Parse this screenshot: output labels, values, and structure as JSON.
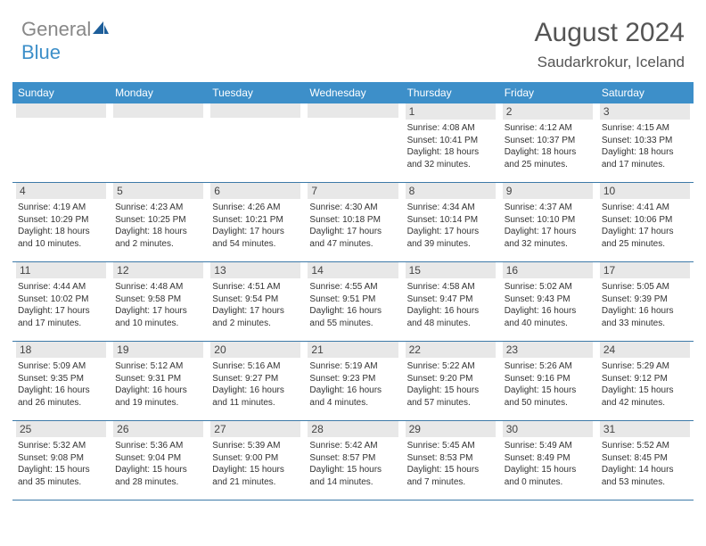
{
  "brand": {
    "part1": "General",
    "part2": "Blue",
    "icon_color": "#1d5e9a"
  },
  "title": "August 2024",
  "location": "Saudarkrokur, Iceland",
  "colors": {
    "header_bg": "#3d8fc9",
    "header_text": "#ffffff",
    "daynum_bg": "#e8e8e8",
    "row_border": "#3d7aa8",
    "body_text": "#333333"
  },
  "fonts": {
    "title_size": 30,
    "location_size": 17,
    "dow_size": 12,
    "daynum_size": 12,
    "body_size": 10
  },
  "dow": [
    "Sunday",
    "Monday",
    "Tuesday",
    "Wednesday",
    "Thursday",
    "Friday",
    "Saturday"
  ],
  "weeks": [
    [
      {
        "n": "",
        "sr": "",
        "ss": "",
        "dl": ""
      },
      {
        "n": "",
        "sr": "",
        "ss": "",
        "dl": ""
      },
      {
        "n": "",
        "sr": "",
        "ss": "",
        "dl": ""
      },
      {
        "n": "",
        "sr": "",
        "ss": "",
        "dl": ""
      },
      {
        "n": "1",
        "sr": "Sunrise: 4:08 AM",
        "ss": "Sunset: 10:41 PM",
        "dl": "Daylight: 18 hours and 32 minutes."
      },
      {
        "n": "2",
        "sr": "Sunrise: 4:12 AM",
        "ss": "Sunset: 10:37 PM",
        "dl": "Daylight: 18 hours and 25 minutes."
      },
      {
        "n": "3",
        "sr": "Sunrise: 4:15 AM",
        "ss": "Sunset: 10:33 PM",
        "dl": "Daylight: 18 hours and 17 minutes."
      }
    ],
    [
      {
        "n": "4",
        "sr": "Sunrise: 4:19 AM",
        "ss": "Sunset: 10:29 PM",
        "dl": "Daylight: 18 hours and 10 minutes."
      },
      {
        "n": "5",
        "sr": "Sunrise: 4:23 AM",
        "ss": "Sunset: 10:25 PM",
        "dl": "Daylight: 18 hours and 2 minutes."
      },
      {
        "n": "6",
        "sr": "Sunrise: 4:26 AM",
        "ss": "Sunset: 10:21 PM",
        "dl": "Daylight: 17 hours and 54 minutes."
      },
      {
        "n": "7",
        "sr": "Sunrise: 4:30 AM",
        "ss": "Sunset: 10:18 PM",
        "dl": "Daylight: 17 hours and 47 minutes."
      },
      {
        "n": "8",
        "sr": "Sunrise: 4:34 AM",
        "ss": "Sunset: 10:14 PM",
        "dl": "Daylight: 17 hours and 39 minutes."
      },
      {
        "n": "9",
        "sr": "Sunrise: 4:37 AM",
        "ss": "Sunset: 10:10 PM",
        "dl": "Daylight: 17 hours and 32 minutes."
      },
      {
        "n": "10",
        "sr": "Sunrise: 4:41 AM",
        "ss": "Sunset: 10:06 PM",
        "dl": "Daylight: 17 hours and 25 minutes."
      }
    ],
    [
      {
        "n": "11",
        "sr": "Sunrise: 4:44 AM",
        "ss": "Sunset: 10:02 PM",
        "dl": "Daylight: 17 hours and 17 minutes."
      },
      {
        "n": "12",
        "sr": "Sunrise: 4:48 AM",
        "ss": "Sunset: 9:58 PM",
        "dl": "Daylight: 17 hours and 10 minutes."
      },
      {
        "n": "13",
        "sr": "Sunrise: 4:51 AM",
        "ss": "Sunset: 9:54 PM",
        "dl": "Daylight: 17 hours and 2 minutes."
      },
      {
        "n": "14",
        "sr": "Sunrise: 4:55 AM",
        "ss": "Sunset: 9:51 PM",
        "dl": "Daylight: 16 hours and 55 minutes."
      },
      {
        "n": "15",
        "sr": "Sunrise: 4:58 AM",
        "ss": "Sunset: 9:47 PM",
        "dl": "Daylight: 16 hours and 48 minutes."
      },
      {
        "n": "16",
        "sr": "Sunrise: 5:02 AM",
        "ss": "Sunset: 9:43 PM",
        "dl": "Daylight: 16 hours and 40 minutes."
      },
      {
        "n": "17",
        "sr": "Sunrise: 5:05 AM",
        "ss": "Sunset: 9:39 PM",
        "dl": "Daylight: 16 hours and 33 minutes."
      }
    ],
    [
      {
        "n": "18",
        "sr": "Sunrise: 5:09 AM",
        "ss": "Sunset: 9:35 PM",
        "dl": "Daylight: 16 hours and 26 minutes."
      },
      {
        "n": "19",
        "sr": "Sunrise: 5:12 AM",
        "ss": "Sunset: 9:31 PM",
        "dl": "Daylight: 16 hours and 19 minutes."
      },
      {
        "n": "20",
        "sr": "Sunrise: 5:16 AM",
        "ss": "Sunset: 9:27 PM",
        "dl": "Daylight: 16 hours and 11 minutes."
      },
      {
        "n": "21",
        "sr": "Sunrise: 5:19 AM",
        "ss": "Sunset: 9:23 PM",
        "dl": "Daylight: 16 hours and 4 minutes."
      },
      {
        "n": "22",
        "sr": "Sunrise: 5:22 AM",
        "ss": "Sunset: 9:20 PM",
        "dl": "Daylight: 15 hours and 57 minutes."
      },
      {
        "n": "23",
        "sr": "Sunrise: 5:26 AM",
        "ss": "Sunset: 9:16 PM",
        "dl": "Daylight: 15 hours and 50 minutes."
      },
      {
        "n": "24",
        "sr": "Sunrise: 5:29 AM",
        "ss": "Sunset: 9:12 PM",
        "dl": "Daylight: 15 hours and 42 minutes."
      }
    ],
    [
      {
        "n": "25",
        "sr": "Sunrise: 5:32 AM",
        "ss": "Sunset: 9:08 PM",
        "dl": "Daylight: 15 hours and 35 minutes."
      },
      {
        "n": "26",
        "sr": "Sunrise: 5:36 AM",
        "ss": "Sunset: 9:04 PM",
        "dl": "Daylight: 15 hours and 28 minutes."
      },
      {
        "n": "27",
        "sr": "Sunrise: 5:39 AM",
        "ss": "Sunset: 9:00 PM",
        "dl": "Daylight: 15 hours and 21 minutes."
      },
      {
        "n": "28",
        "sr": "Sunrise: 5:42 AM",
        "ss": "Sunset: 8:57 PM",
        "dl": "Daylight: 15 hours and 14 minutes."
      },
      {
        "n": "29",
        "sr": "Sunrise: 5:45 AM",
        "ss": "Sunset: 8:53 PM",
        "dl": "Daylight: 15 hours and 7 minutes."
      },
      {
        "n": "30",
        "sr": "Sunrise: 5:49 AM",
        "ss": "Sunset: 8:49 PM",
        "dl": "Daylight: 15 hours and 0 minutes."
      },
      {
        "n": "31",
        "sr": "Sunrise: 5:52 AM",
        "ss": "Sunset: 8:45 PM",
        "dl": "Daylight: 14 hours and 53 minutes."
      }
    ]
  ]
}
